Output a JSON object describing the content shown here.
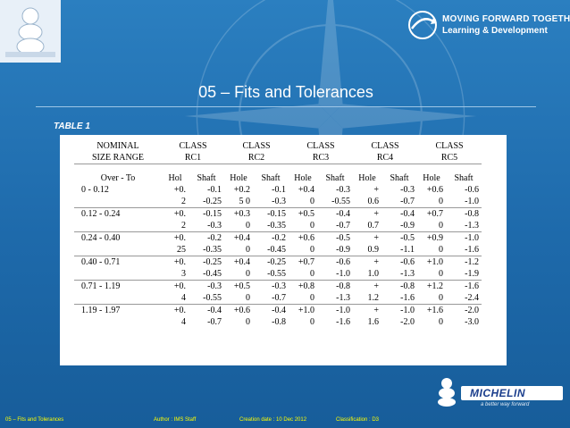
{
  "title": "05 – Fits and Tolerances",
  "table_label": "TABLE 1",
  "brand": {
    "line1": "MOVING FORWARD TOGETHER",
    "line2": "Learning & Development",
    "michelin": "MICHELIN",
    "tagline": "a better way forward",
    "colors": {
      "background": "#1f6fb0",
      "footer_text": "#ffff00",
      "michelin_blue": "#1a3d8c"
    }
  },
  "table": {
    "nominal_l1": "NOMINAL",
    "nominal_l2": "SIZE RANGE",
    "classes": [
      {
        "l1": "CLASS",
        "l2": "RC1"
      },
      {
        "l1": "CLASS",
        "l2": "RC2"
      },
      {
        "l1": "CLASS",
        "l2": "RC3"
      },
      {
        "l1": "CLASS",
        "l2": "RC4"
      },
      {
        "l1": "CLASS",
        "l2": "RC5"
      }
    ],
    "sub_headers": [
      "Over  -   To",
      "Hol",
      "Shaft",
      "Hole",
      "Shaft",
      "Hole",
      "Shaft",
      "Hole",
      "Shaft",
      "Hole",
      "Shaft"
    ],
    "rows": [
      {
        "r1": [
          "0   -    0.12",
          "+0.",
          "-0.1",
          "+0.2",
          "-0.1",
          "+0.4",
          "-0.3",
          "+",
          "-0.3",
          "+0.6",
          "-0.6"
        ],
        "r2": [
          "",
          "2",
          "-0.25",
          "5   0",
          "-0.3",
          "0",
          "-0.55",
          "0.6",
          "-0.7",
          "0",
          "-1.0"
        ]
      },
      {
        "r1": [
          "0.12   -   0.24",
          "+0.",
          "-0.15",
          "+0.3",
          "-0.15",
          "+0.5",
          "-0.4",
          "+",
          "-0.4",
          "+0.7",
          "-0.8"
        ],
        "r2": [
          "",
          "2",
          "-0.3",
          "0",
          "-0.35",
          "0",
          "-0.7",
          "0.7",
          "-0.9",
          "0",
          "-1.3"
        ]
      },
      {
        "r1": [
          "0.24   -     0.40",
          "+0.",
          "-0.2",
          "+0.4",
          "-0.2",
          "+0.6",
          "-0.5",
          "+",
          "-0.5",
          "+0.9",
          "-1.0"
        ],
        "r2": [
          "",
          "25",
          "-0.35",
          "0",
          "-0.45",
          "0",
          "-0.9",
          "0.9",
          "-1.1",
          "0",
          "-1.6"
        ]
      },
      {
        "r1": [
          "0.40   -     0.71",
          "+0.",
          "-0.25",
          "+0.4",
          "-0.25",
          "+0.7",
          "-0.6",
          "+",
          "-0.6",
          "+1.0",
          "-1.2"
        ],
        "r2": [
          "",
          "3",
          "-0.45",
          "0",
          "-0.55",
          "0",
          "-1.0",
          "1.0",
          "-1.3",
          "0",
          "-1.9"
        ]
      },
      {
        "r1": [
          "0.71   -     1.19",
          "+0.",
          "-0.3",
          "+0.5",
          "-0.3",
          "+0.8",
          "-0.8",
          "+",
          "-0.8",
          "+1.2",
          "-1.6"
        ],
        "r2": [
          "",
          "4",
          "-0.55",
          "0",
          "-0.7",
          "0",
          "-1.3",
          "1.2",
          "-1.6",
          "0",
          "-2.4"
        ]
      },
      {
        "r1": [
          "1.19  -      1.97",
          "+0.",
          "-0.4",
          "+0.6",
          "-0.4",
          "+1.0",
          "-1.0",
          "+",
          "-1.0",
          "+1.6",
          "-2.0"
        ],
        "r2": [
          "",
          "4",
          "-0.7",
          "0",
          "-0.8",
          "0",
          "-1.6",
          "1.6",
          "-2.0",
          "0",
          "-3.0"
        ]
      }
    ]
  },
  "footer": {
    "title": "05 – Fits and Tolerances",
    "author": "Author : IMS Staff",
    "date": "Creation date : 10 Dec 2012",
    "classification": "Classification : D3"
  }
}
